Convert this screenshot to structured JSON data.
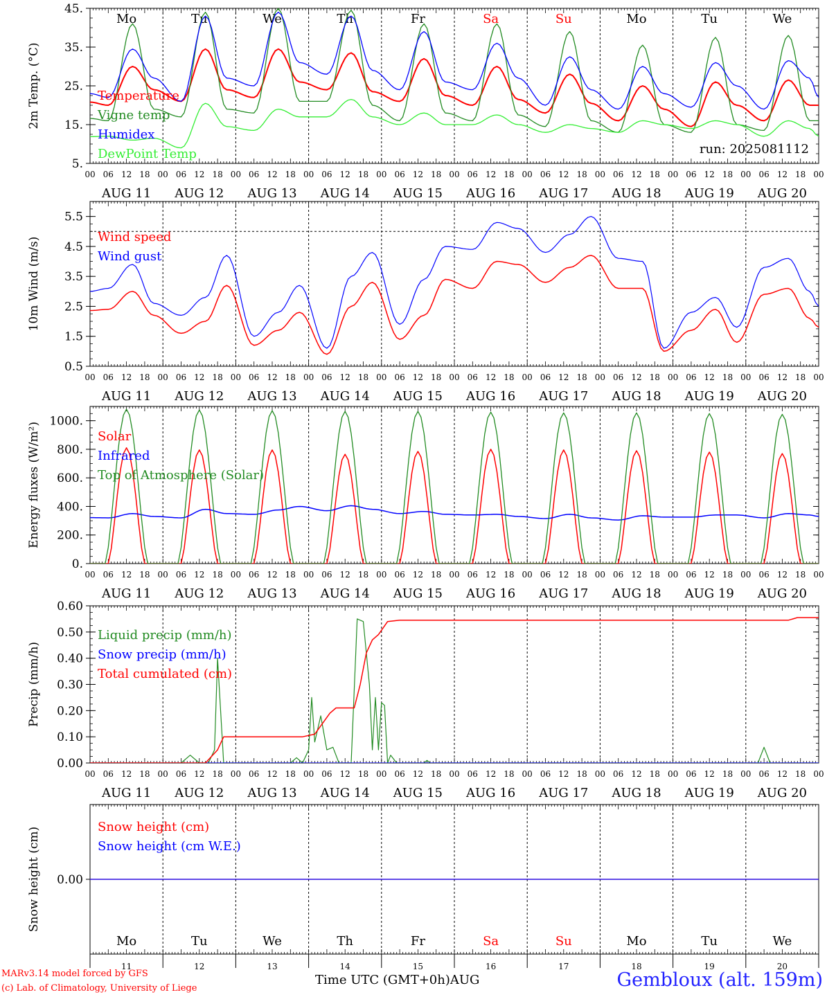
{
  "footer": {
    "model": "MARv3.14 model forced by GFS",
    "lab": "(c) Lab. of Climatology, University of Liege",
    "time_label": "Time UTC (GMT+0h)",
    "month": "AUG",
    "station": "Gembloux (alt. 159m)"
  },
  "colors": {
    "red": "#ff0000",
    "blue": "#0000ff",
    "darkgreen": "#228b22",
    "lightgreen": "#33ee33",
    "black": "#000000"
  },
  "chart_data": {
    "days": [
      {
        "weekday": "Mo",
        "date": "AUG 11",
        "num": "11",
        "weekend": false
      },
      {
        "weekday": "Tu",
        "date": "AUG 12",
        "num": "12",
        "weekend": false
      },
      {
        "weekday": "We",
        "date": "AUG 13",
        "num": "13",
        "weekend": false
      },
      {
        "weekday": "Th",
        "date": "AUG 14",
        "num": "14",
        "weekend": false
      },
      {
        "weekday": "Fr",
        "date": "AUG 15",
        "num": "15",
        "weekend": false
      },
      {
        "weekday": "Sa",
        "date": "AUG 16",
        "num": "16",
        "weekend": true
      },
      {
        "weekday": "Su",
        "date": "AUG 17",
        "num": "17",
        "weekend": true
      },
      {
        "weekday": "Mo",
        "date": "AUG 18",
        "num": "18",
        "weekend": false
      },
      {
        "weekday": "Tu",
        "date": "AUG 19",
        "num": "19",
        "weekend": false
      },
      {
        "weekday": "We",
        "date": "AUG 20",
        "num": "20",
        "weekend": false
      }
    ],
    "hour_labels": [
      "00",
      "06",
      "12",
      "18"
    ],
    "end_hour_label": "00",
    "panels": [
      {
        "id": "temp",
        "type": "line",
        "ylabel": "2m Temp. (°C)",
        "ylim": [
          5,
          45
        ],
        "ticks": [
          5,
          15,
          25,
          35,
          45
        ],
        "tick_labels": [
          "5.",
          "15.",
          "25.",
          "35.",
          "45."
        ],
        "minor_step": 2.5,
        "show_weekdays_top": true,
        "run_label": "run: 2025081112",
        "series": [
          {
            "name": "Temperature",
            "color": "#ff0000",
            "width": 2,
            "days": [
              [
                20,
                30,
                24
              ],
              [
                21,
                34.5,
                24
              ],
              [
                22,
                34.5,
                26
              ],
              [
                24,
                33.5,
                23.5
              ],
              [
                21,
                32,
                22.5
              ],
              [
                20,
                30,
                21.5
              ],
              [
                18,
                28,
                20.5
              ],
              [
                16,
                25,
                19
              ],
              [
                14.5,
                26,
                20
              ],
              [
                16,
                26.5,
                20
              ]
            ],
            "end": 20
          },
          {
            "name": "Vigne temp",
            "color": "#228b22",
            "width": 1.3,
            "days": [
              [
                16,
                41,
                19
              ],
              [
                17,
                44,
                19
              ],
              [
                18,
                45,
                21
              ],
              [
                21,
                44.5,
                20
              ],
              [
                16,
                41,
                18
              ],
              [
                16,
                41,
                17.5
              ],
              [
                14.5,
                39,
                16
              ],
              [
                13,
                35.5,
                15
              ],
              [
                13,
                37.5,
                15
              ],
              [
                13.5,
                38,
                16
              ]
            ],
            "end": 16
          },
          {
            "name": "Humidex",
            "color": "#0000ff",
            "width": 1.3,
            "days": [
              [
                22,
                34.5,
                27
              ],
              [
                21,
                43,
                27
              ],
              [
                25,
                44,
                31
              ],
              [
                28,
                43,
                29
              ],
              [
                24,
                39,
                26
              ],
              [
                24,
                36,
                27
              ],
              [
                20,
                32.5,
                24
              ],
              [
                19,
                30,
                23
              ],
              [
                19.5,
                31,
                25
              ],
              [
                19,
                31.5,
                27
              ]
            ],
            "end": 22
          },
          {
            "name": "DewPoint Temp",
            "color": "#33ee33",
            "width": 1.3,
            "days": [
              [
                12,
                11,
                11.5
              ],
              [
                9,
                20.5,
                14.5
              ],
              [
                13.5,
                19,
                17
              ],
              [
                17,
                21.5,
                17
              ],
              [
                15,
                18,
                15
              ],
              [
                15,
                17.5,
                15
              ],
              [
                13,
                15,
                14
              ],
              [
                13,
                16,
                15
              ],
              [
                14,
                16,
                15
              ],
              [
                12,
                16,
                14
              ]
            ],
            "end": 12
          }
        ]
      },
      {
        "id": "wind",
        "type": "line",
        "ylabel": "10m Wind (m/s)",
        "ylim": [
          0.5,
          6
        ],
        "ticks": [
          0.5,
          1.5,
          2.5,
          3.5,
          4.5,
          5.5
        ],
        "tick_labels": [
          "0.5",
          "1.5",
          "2.5",
          "3.5",
          "4.5",
          "5.5"
        ],
        "minor_step": 0.25,
        "dashed_level": 5,
        "series": [
          {
            "name": "Wind speed",
            "color": "#ff0000",
            "width": 1.5,
            "days": [
              [
                2.4,
                3.0,
                2.2
              ],
              [
                1.6,
                2.0,
                3.2
              ],
              [
                1.2,
                1.7,
                2.3
              ],
              [
                0.9,
                2.5,
                3.3
              ],
              [
                1.4,
                2.2,
                3.4
              ],
              [
                3.1,
                4.0,
                3.9
              ],
              [
                3.3,
                3.8,
                4.2
              ],
              [
                3.1,
                3.1,
                1.0
              ],
              [
                1.7,
                2.4,
                1.3
              ],
              [
                2.9,
                3.1,
                2.1
              ]
            ],
            "end": 1.8
          },
          {
            "name": "Wind gust",
            "color": "#0000ff",
            "width": 1.2,
            "days": [
              [
                3.1,
                3.9,
                2.6
              ],
              [
                2.2,
                2.8,
                4.2
              ],
              [
                1.5,
                2.3,
                3.2
              ],
              [
                1.1,
                3.5,
                4.3
              ],
              [
                1.9,
                3.4,
                4.5
              ],
              [
                4.4,
                5.3,
                5.1
              ],
              [
                4.3,
                4.9,
                5.5
              ],
              [
                4.1,
                4.0,
                1.1
              ],
              [
                2.3,
                2.8,
                1.8
              ],
              [
                3.8,
                4.1,
                3.0
              ]
            ],
            "end": 2.5
          }
        ]
      },
      {
        "id": "energy",
        "type": "line",
        "ylabel": "Energy fluxes (W/m²)",
        "ylim": [
          0,
          1100
        ],
        "ticks": [
          0,
          200,
          400,
          600,
          800,
          1000
        ],
        "tick_labels": [
          "0.",
          "200.",
          "400.",
          "600.",
          "800.",
          "1000."
        ],
        "minor_step": 50,
        "series": [
          {
            "name": "Solar",
            "color": "#ff0000",
            "width": 1.5,
            "peaks": [
              810,
              795,
              795,
              765,
              785,
              800,
              795,
              790,
              780,
              770
            ]
          },
          {
            "name": "Infrared",
            "color": "#0000ff",
            "width": 1.5,
            "days": [
              [
                320,
                350,
                330
              ],
              [
                320,
                380,
                350
              ],
              [
                345,
                375,
                400
              ],
              [
                370,
                405,
                380
              ],
              [
                350,
                365,
                345
              ],
              [
                340,
                345,
                330
              ],
              [
                315,
                345,
                320
              ],
              [
                305,
                335,
                325
              ],
              [
                325,
                340,
                340
              ],
              [
                320,
                350,
                340
              ]
            ],
            "end": 330
          },
          {
            "name": "Top of Atmosphere (Solar)",
            "color": "#228b22",
            "width": 1.3,
            "peaks": [
              1080,
              1075,
              1070,
              1065,
              1065,
              1060,
              1055,
              1055,
              1050,
              1045
            ]
          }
        ]
      },
      {
        "id": "precip",
        "type": "line",
        "ylabel": "Precip (mm/h)",
        "ylim": [
          0,
          0.6
        ],
        "ticks": [
          0,
          0.1,
          0.2,
          0.3,
          0.4,
          0.5,
          0.6
        ],
        "tick_labels": [
          "0.00",
          "0.10",
          "0.20",
          "0.30",
          "0.40",
          "0.50",
          "0.60"
        ],
        "minor_step": 0.025,
        "series": [
          {
            "name": "Liquid precip (mm/h)",
            "color": "#228b22",
            "width": 1.2,
            "points": [
              [
                0,
                0
              ],
              [
                30,
                0
              ],
              [
                33,
                0.03
              ],
              [
                36,
                0
              ],
              [
                39,
                0
              ],
              [
                41,
                0.05
              ],
              [
                42,
                0.4
              ],
              [
                44,
                0.0
              ],
              [
                66,
                0
              ],
              [
                68,
                0.02
              ],
              [
                70,
                0
              ],
              [
                72,
                0.05
              ],
              [
                73,
                0.25
              ],
              [
                74,
                0.08
              ],
              [
                76,
                0.18
              ],
              [
                78,
                0.05
              ],
              [
                80,
                0.06
              ],
              [
                82,
                0.0
              ],
              [
                86,
                0
              ],
              [
                88,
                0.55
              ],
              [
                90,
                0.54
              ],
              [
                92,
                0.3
              ],
              [
                93,
                0.05
              ],
              [
                94,
                0.25
              ],
              [
                95,
                0.05
              ],
              [
                96,
                0.23
              ],
              [
                97,
                0.22
              ],
              [
                98,
                0.0
              ],
              [
                99,
                0.03
              ],
              [
                101,
                0
              ],
              [
                110,
                0
              ],
              [
                111,
                0.01
              ],
              [
                112,
                0
              ],
              [
                220,
                0
              ],
              [
                222,
                0.06
              ],
              [
                224,
                0
              ],
              [
                240,
                0
              ]
            ]
          },
          {
            "name": "Snow precip (mm/h)",
            "color": "#0000ff",
            "width": 1.2,
            "points": [
              [
                0,
                0
              ],
              [
                240,
                0
              ]
            ]
          },
          {
            "name": "Total cumulated (cm)",
            "color": "#ff0000",
            "width": 1.5,
            "points": [
              [
                0,
                0
              ],
              [
                38,
                0
              ],
              [
                42,
                0.05
              ],
              [
                44,
                0.1
              ],
              [
                70,
                0.1
              ],
              [
                74,
                0.11
              ],
              [
                79,
                0.19
              ],
              [
                81,
                0.21
              ],
              [
                87,
                0.21
              ],
              [
                89,
                0.3
              ],
              [
                91,
                0.42
              ],
              [
                93,
                0.47
              ],
              [
                95,
                0.49
              ],
              [
                98,
                0.54
              ],
              [
                102,
                0.545
              ],
              [
                230,
                0.545
              ],
              [
                233,
                0.555
              ],
              [
                240,
                0.555
              ]
            ]
          }
        ]
      },
      {
        "id": "snow",
        "type": "line",
        "ylabel": "Snow height (cm)",
        "ylim": [
          -1,
          1
        ],
        "ticks": [
          0
        ],
        "tick_labels": [
          "0.00"
        ],
        "minor_step": 0,
        "show_weekdays_bottom": true,
        "show_day_numbers": true,
        "series": [
          {
            "name": "Snow height (cm)",
            "color": "#ff0000",
            "width": 1.3,
            "points": [
              [
                0,
                0
              ],
              [
                240,
                0
              ]
            ]
          },
          {
            "name": "Snow height (cm W.E.)",
            "color": "#0000ff",
            "width": 1.3,
            "points": [
              [
                0,
                0
              ],
              [
                240,
                0
              ]
            ]
          }
        ]
      }
    ]
  }
}
